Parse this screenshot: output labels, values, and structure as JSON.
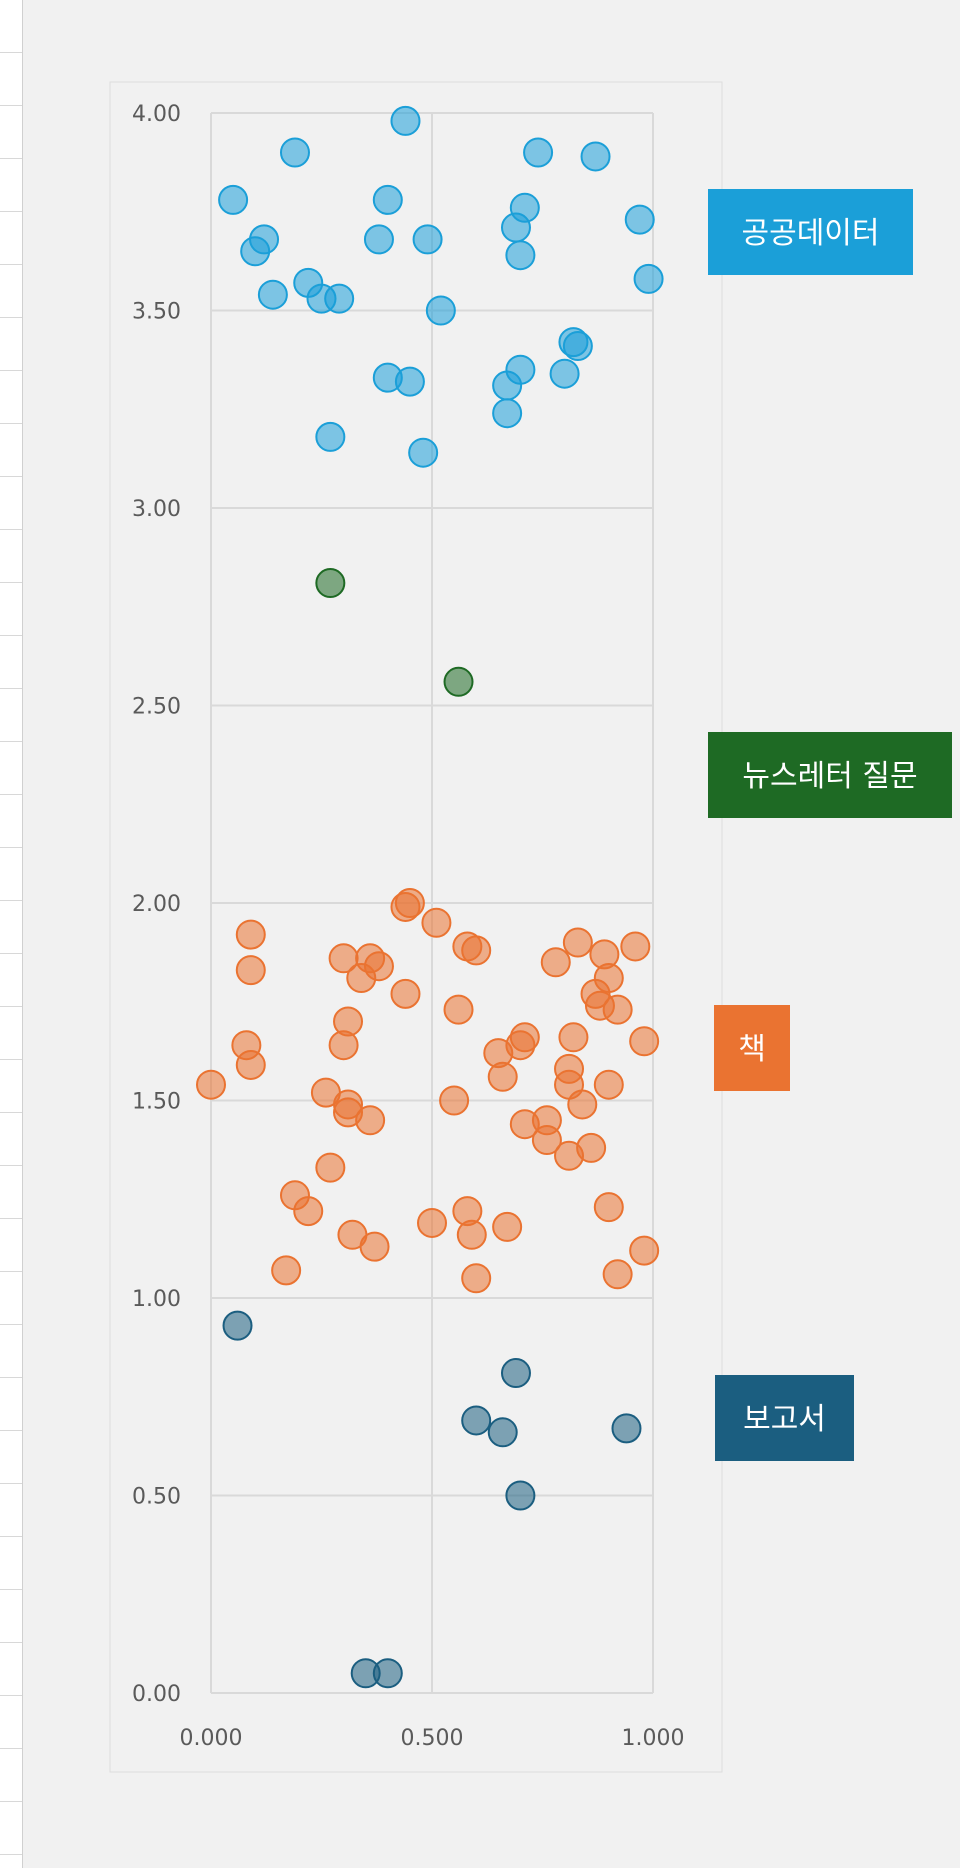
{
  "colors": {
    "public_data": "#1b9fd8",
    "newsletter": "#1e6a24",
    "book": "#ea7331",
    "report": "#1b5e80",
    "grid": "#d9d9d9",
    "plot_frame": "#dddddd"
  },
  "chart_data": {
    "type": "scatter",
    "title": "",
    "xlabel": "",
    "ylabel": "",
    "xlim": [
      0,
      1
    ],
    "ylim": [
      0,
      4
    ],
    "x_ticks": [
      "0.000",
      "0.500",
      "1.000"
    ],
    "y_ticks": [
      "0.00",
      "0.50",
      "1.00",
      "1.50",
      "2.00",
      "2.50",
      "3.00",
      "3.50",
      "4.00"
    ],
    "grid": true,
    "legend": "category labels at right",
    "series": [
      {
        "name": "공공데이터",
        "color": "#1b9fd8",
        "points": [
          [
            0.05,
            3.78
          ],
          [
            0.1,
            3.65
          ],
          [
            0.12,
            3.68
          ],
          [
            0.14,
            3.54
          ],
          [
            0.19,
            3.9
          ],
          [
            0.22,
            3.57
          ],
          [
            0.25,
            3.53
          ],
          [
            0.29,
            3.53
          ],
          [
            0.27,
            3.18
          ],
          [
            0.38,
            3.68
          ],
          [
            0.4,
            3.78
          ],
          [
            0.4,
            3.33
          ],
          [
            0.44,
            3.98
          ],
          [
            0.45,
            3.32
          ],
          [
            0.48,
            3.14
          ],
          [
            0.49,
            3.68
          ],
          [
            0.52,
            3.5
          ],
          [
            0.67,
            3.31
          ],
          [
            0.67,
            3.24
          ],
          [
            0.69,
            3.71
          ],
          [
            0.7,
            3.35
          ],
          [
            0.7,
            3.64
          ],
          [
            0.71,
            3.76
          ],
          [
            0.74,
            3.9
          ],
          [
            0.8,
            3.34
          ],
          [
            0.82,
            3.42
          ],
          [
            0.83,
            3.41
          ],
          [
            0.87,
            3.89
          ],
          [
            0.97,
            3.73
          ],
          [
            0.99,
            3.58
          ]
        ]
      },
      {
        "name": "뉴스레터 질문",
        "color": "#1e6a24",
        "points": [
          [
            0.27,
            2.81
          ],
          [
            0.56,
            2.56
          ]
        ]
      },
      {
        "name": "책",
        "color": "#ea7331",
        "points": [
          [
            0.0,
            1.54
          ],
          [
            0.08,
            1.64
          ],
          [
            0.09,
            1.59
          ],
          [
            0.09,
            1.83
          ],
          [
            0.09,
            1.92
          ],
          [
            0.17,
            1.07
          ],
          [
            0.19,
            1.26
          ],
          [
            0.22,
            1.22
          ],
          [
            0.26,
            1.52
          ],
          [
            0.27,
            1.33
          ],
          [
            0.3,
            1.86
          ],
          [
            0.3,
            1.64
          ],
          [
            0.31,
            1.7
          ],
          [
            0.31,
            1.49
          ],
          [
            0.31,
            1.47
          ],
          [
            0.32,
            1.16
          ],
          [
            0.34,
            1.81
          ],
          [
            0.36,
            1.86
          ],
          [
            0.36,
            1.45
          ],
          [
            0.37,
            1.13
          ],
          [
            0.38,
            1.84
          ],
          [
            0.44,
            1.99
          ],
          [
            0.45,
            2.0
          ],
          [
            0.44,
            1.77
          ],
          [
            0.51,
            1.95
          ],
          [
            0.5,
            1.19
          ],
          [
            0.55,
            1.5
          ],
          [
            0.56,
            1.73
          ],
          [
            0.58,
            1.89
          ],
          [
            0.58,
            1.22
          ],
          [
            0.59,
            1.16
          ],
          [
            0.6,
            1.88
          ],
          [
            0.6,
            1.05
          ],
          [
            0.65,
            1.62
          ],
          [
            0.66,
            1.56
          ],
          [
            0.67,
            1.18
          ],
          [
            0.7,
            1.64
          ],
          [
            0.71,
            1.66
          ],
          [
            0.71,
            1.44
          ],
          [
            0.76,
            1.45
          ],
          [
            0.76,
            1.4
          ],
          [
            0.78,
            1.85
          ],
          [
            0.81,
            1.58
          ],
          [
            0.81,
            1.54
          ],
          [
            0.81,
            1.36
          ],
          [
            0.82,
            1.66
          ],
          [
            0.83,
            1.9
          ],
          [
            0.84,
            1.49
          ],
          [
            0.86,
            1.38
          ],
          [
            0.87,
            1.77
          ],
          [
            0.88,
            1.74
          ],
          [
            0.89,
            1.87
          ],
          [
            0.9,
            1.81
          ],
          [
            0.9,
            1.54
          ],
          [
            0.9,
            1.23
          ],
          [
            0.92,
            1.73
          ],
          [
            0.92,
            1.06
          ],
          [
            0.96,
            1.89
          ],
          [
            0.98,
            1.65
          ],
          [
            0.98,
            1.12
          ]
        ]
      },
      {
        "name": "보고서",
        "color": "#1b5e80",
        "points": [
          [
            0.06,
            0.93
          ],
          [
            0.35,
            0.05
          ],
          [
            0.4,
            0.05
          ],
          [
            0.6,
            0.69
          ],
          [
            0.66,
            0.66
          ],
          [
            0.69,
            0.81
          ],
          [
            0.7,
            0.5
          ],
          [
            0.94,
            0.67
          ]
        ]
      }
    ]
  }
}
